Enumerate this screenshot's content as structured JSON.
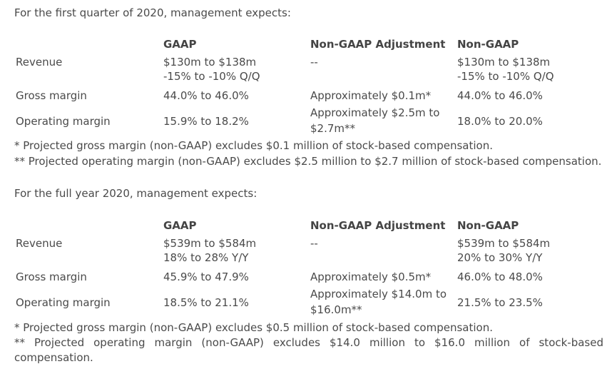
{
  "section1": {
    "intro": "For the first quarter of 2020, management expects:",
    "headers": {
      "gaap": "GAAP",
      "adjustment": "Non-GAAP Adjustment",
      "non_gaap": "Non-GAAP"
    },
    "rows": [
      {
        "label": "Revenue",
        "gaap_1": "$130m to $138m",
        "gaap_2": "-15% to -10% Q/Q",
        "adjustment": "--",
        "non_gaap_1": "$130m to $138m",
        "non_gaap_2": "-15% to -10% Q/Q"
      },
      {
        "label": "Gross margin",
        "gaap": "44.0% to 46.0%",
        "adjustment": "Approximately $0.1m*",
        "non_gaap": "44.0% to 46.0%"
      },
      {
        "label": "Operating margin",
        "gaap": "15.9% to 18.2%",
        "adjustment_1": "Approximately $2.5m to",
        "adjustment_2": "$2.7m**",
        "non_gaap": "18.0% to 20.0%"
      }
    ],
    "note1": "* Projected gross margin (non-GAAP) excludes $0.1 million of stock-based compensation.",
    "note2": "** Projected operating margin (non-GAAP) excludes $2.5 million to $2.7 million of stock-based compensation."
  },
  "section2": {
    "intro": "For the full year 2020, management expects:",
    "headers": {
      "gaap": "GAAP",
      "adjustment": "Non-GAAP Adjustment",
      "non_gaap": "Non-GAAP"
    },
    "rows": [
      {
        "label": "Revenue",
        "gaap_1": "$539m to $584m",
        "gaap_2": "18% to 28% Y/Y",
        "adjustment": "--",
        "non_gaap_1": "$539m to $584m",
        "non_gaap_2": "20% to 30% Y/Y"
      },
      {
        "label": "Gross margin",
        "gaap": "45.9% to 47.9%",
        "adjustment": "Approximately $0.5m*",
        "non_gaap": "46.0% to 48.0%"
      },
      {
        "label": "Operating margin",
        "gaap": "18.5% to 21.1%",
        "adjustment_1": "Approximately $14.0m to",
        "adjustment_2": "$16.0m**",
        "non_gaap": "21.5% to 23.5%"
      }
    ],
    "note1": "* Projected gross margin (non-GAAP) excludes $0.5 million of stock-based compensation.",
    "note2": "** Projected operating margin (non-GAAP) excludes $14.0 million to $16.0 million of stock-based compensation."
  }
}
